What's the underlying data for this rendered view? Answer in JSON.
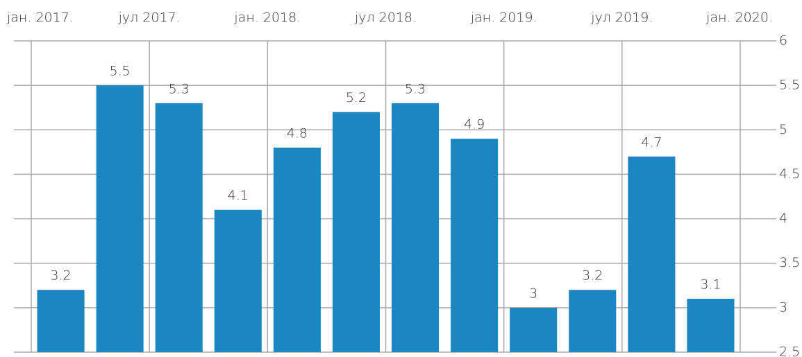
{
  "chart_data": {
    "type": "bar",
    "top_axis_labels": [
      "јан. 2017.",
      "јул 2017.",
      "јан. 2018.",
      "јул 2018.",
      "јан. 2019.",
      "јул 2019.",
      "јан. 2020."
    ],
    "categories": [
      null,
      null,
      null,
      null,
      null,
      null,
      null,
      null,
      null,
      null,
      null,
      null
    ],
    "values": [
      3.2,
      5.5,
      5.3,
      4.1,
      4.8,
      5.2,
      5.3,
      4.9,
      3,
      3.2,
      4.7,
      3.1
    ],
    "color": "#1b86bf",
    "ylim": [
      2.5,
      6
    ],
    "yticks": [
      2.5,
      3,
      3.5,
      4,
      4.5,
      5,
      5.5,
      6
    ],
    "y_axis_side": "right",
    "grid": true
  }
}
